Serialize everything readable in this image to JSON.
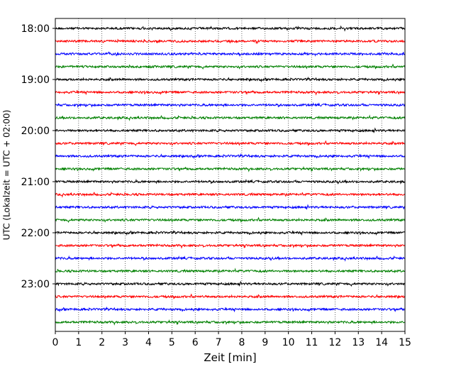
{
  "chart_data": {
    "type": "line",
    "title": "",
    "xlabel": "Zeit  [min]",
    "ylabel": "UTC (Lokalzeit = UTC + 02:00)",
    "xlim": [
      0,
      15
    ],
    "x_ticks": [
      "0",
      "1",
      "2",
      "3",
      "4",
      "5",
      "6",
      "7",
      "8",
      "9",
      "10",
      "11",
      "12",
      "13",
      "14",
      "15"
    ],
    "y_ticks": [
      "18:00",
      "19:00",
      "20:00",
      "21:00",
      "22:00",
      "23:00"
    ],
    "traces_per_hour": 4,
    "minutes_per_trace": 15,
    "trace_start_times": [
      "18:00",
      "18:15",
      "18:30",
      "18:45",
      "19:00",
      "19:15",
      "19:30",
      "19:45",
      "20:00",
      "20:15",
      "20:30",
      "20:45",
      "21:00",
      "21:15",
      "21:30",
      "21:45",
      "22:00",
      "22:15",
      "22:30",
      "22:45",
      "23:00",
      "23:15",
      "23:30",
      "23:45"
    ],
    "trace_colors": [
      "#000000",
      "#ff0000",
      "#0000ff",
      "#008000"
    ],
    "grid": {
      "x": "dotted",
      "y": false
    },
    "legend": "none"
  }
}
